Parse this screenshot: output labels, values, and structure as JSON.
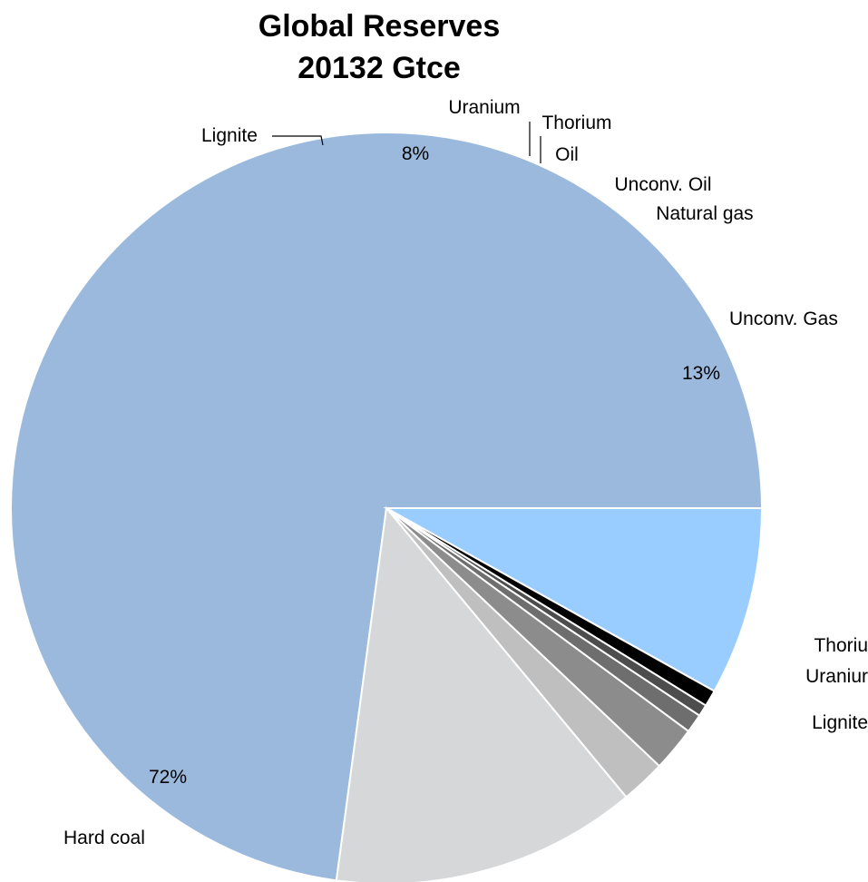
{
  "chart_data": {
    "type": "pie",
    "title": "Global Reserves",
    "subtitle": "20132 Gtce",
    "slices": [
      {
        "name": "Hard coal",
        "value": 72,
        "color": "#9ab9dc",
        "pct_label": "72%"
      },
      {
        "name": "Lignite",
        "value": 8,
        "color": "#99ccff",
        "pct_label": "8%"
      },
      {
        "name": "Uranium",
        "value": 0.7,
        "color": "#000000",
        "pct_label": ""
      },
      {
        "name": "Thorium",
        "value": 0.5,
        "color": "#4d4d4d",
        "pct_label": ""
      },
      {
        "name": "Oil",
        "value": 0.8,
        "color": "#6e6e6e",
        "pct_label": ""
      },
      {
        "name": "Unconv. Oil",
        "value": 1.9,
        "color": "#8c8c8c",
        "pct_label": ""
      },
      {
        "name": "Natural gas",
        "value": 1.9,
        "color": "#bfbfbf",
        "pct_label": ""
      },
      {
        "name": "Unconv. Gas",
        "value": 13,
        "color": "#d6d7d9",
        "pct_label": "13%"
      }
    ],
    "clipped_labels": [
      "Thoriu",
      "Uraniur",
      "Lignite"
    ],
    "legend": "none"
  }
}
